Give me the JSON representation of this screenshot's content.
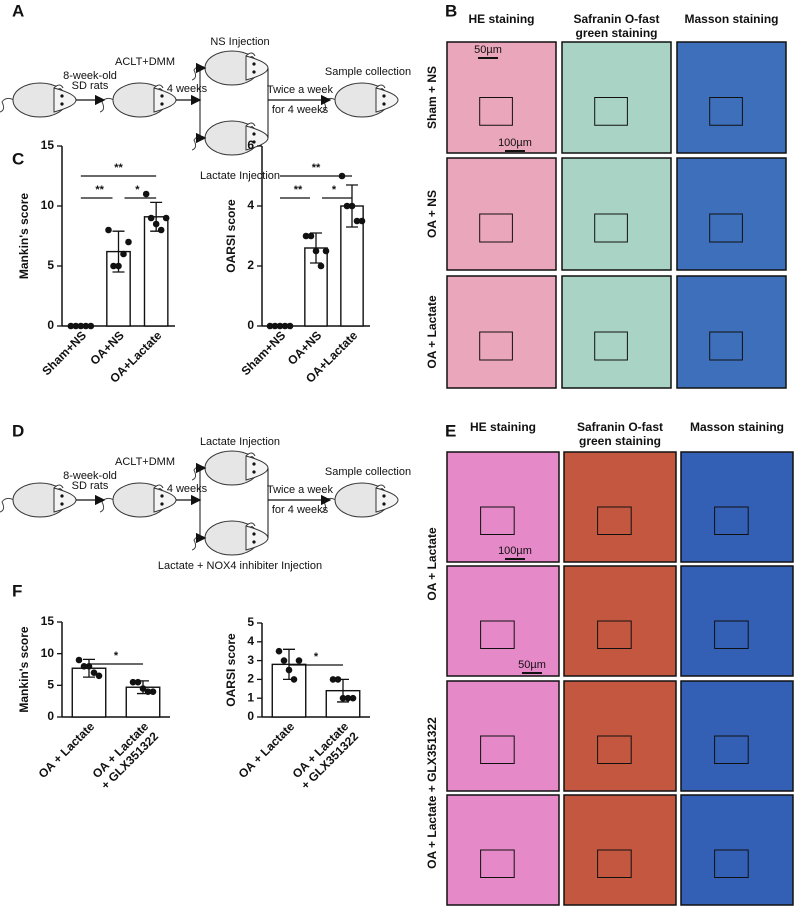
{
  "panel_labels": [
    "A",
    "B",
    "C",
    "D",
    "E",
    "F"
  ],
  "schemes": [
    {
      "age_lines": [
        "8-week-old",
        "SD rats"
      ],
      "surgery": "ACLT+DMM",
      "interval": "4 weeks",
      "upper_treatment": "NS Injection",
      "lower_treatment": "Lactate Injection",
      "schedule_lines": [
        "Twice a week",
        "for 4 weeks"
      ],
      "endpoint": "Sample collection"
    },
    {
      "age_lines": [
        "8-week-old",
        "SD rats"
      ],
      "surgery": "ACLT+DMM",
      "interval": "4 weeks",
      "upper_treatment": "Lactate Injection",
      "lower_treatment": "Lactate + NOX4 inhibiter Injection",
      "schedule_lines": [
        "Twice a week",
        "for 4 weeks"
      ],
      "endpoint": "Sample collection"
    }
  ],
  "histology": [
    {
      "columns": [
        [
          "HE staining"
        ],
        [
          "Safranin O-fast",
          "green staining"
        ],
        [
          "Masson staining"
        ]
      ],
      "rows": [
        "Sham + NS",
        "OA + NS",
        "OA + Lactate"
      ],
      "scale_bars": [
        "50µm",
        "100µm"
      ]
    },
    {
      "columns": [
        [
          "HE staining"
        ],
        [
          "Safranin O-fast",
          "green staining"
        ],
        [
          "Masson staining"
        ]
      ],
      "rows": [
        "OA + Lactate",
        "OA + Lactate + GLX351322"
      ],
      "scale_bars": [
        "100µm",
        "50µm"
      ]
    }
  ],
  "chart_data": [
    {
      "type": "bar",
      "y_label": "Mankin's score",
      "categories": [
        [
          "Sham+NS"
        ],
        [
          "OA+NS"
        ],
        [
          "OA+Lactate"
        ]
      ],
      "values": [
        0,
        6.2,
        9.1
      ],
      "errors": [
        0,
        1.7,
        1.2
      ],
      "points": [
        [
          0,
          0,
          0,
          0,
          0
        ],
        [
          8,
          5,
          5,
          6,
          7
        ],
        [
          11,
          9,
          8.5,
          8,
          9
        ]
      ],
      "ylim": [
        0,
        15
      ],
      "yticks": [
        0,
        5,
        10,
        15
      ],
      "comparisons": [
        {
          "pair": [
            0,
            2
          ],
          "label": "**"
        },
        {
          "pair": [
            0,
            1
          ],
          "label": "**"
        },
        {
          "pair": [
            1,
            2
          ],
          "label": "*"
        }
      ]
    },
    {
      "type": "bar",
      "y_label": "OARSI score",
      "categories": [
        [
          "Sham+NS"
        ],
        [
          "OA+NS"
        ],
        [
          "OA+Lactate"
        ]
      ],
      "values": [
        0,
        2.6,
        4.0
      ],
      "errors": [
        0,
        0.5,
        0.7
      ],
      "points": [
        [
          0,
          0,
          0,
          0,
          0
        ],
        [
          3,
          3,
          2.5,
          2,
          2.5
        ],
        [
          5,
          4,
          4,
          3.5,
          3.5
        ]
      ],
      "ylim": [
        0,
        6
      ],
      "yticks": [
        0,
        2,
        4,
        6
      ],
      "comparisons": [
        {
          "pair": [
            0,
            2
          ],
          "label": "**"
        },
        {
          "pair": [
            0,
            1
          ],
          "label": "**"
        },
        {
          "pair": [
            1,
            2
          ],
          "label": "*"
        }
      ]
    },
    {
      "type": "bar",
      "y_label": "Mankin's score",
      "categories": [
        [
          "OA + Lactate"
        ],
        [
          "OA + Lactate",
          "+ GLX351322"
        ]
      ],
      "values": [
        7.7,
        4.7
      ],
      "errors": [
        1.4,
        1.0
      ],
      "points": [
        [
          9,
          8,
          8,
          7,
          6.5
        ],
        [
          5.5,
          5.5,
          4.5,
          4,
          4
        ]
      ],
      "ylim": [
        0,
        15
      ],
      "yticks": [
        0,
        5,
        10,
        15
      ],
      "comparisons": [
        {
          "pair": [
            0,
            1
          ],
          "label": "*"
        }
      ]
    },
    {
      "type": "bar",
      "y_label": "OARSI score",
      "categories": [
        [
          "OA + Lactate"
        ],
        [
          "OA + Lactate",
          "+ GLX351322"
        ]
      ],
      "values": [
        2.8,
        1.4
      ],
      "errors": [
        0.8,
        0.6
      ],
      "points": [
        [
          3.5,
          3,
          2.5,
          2,
          3
        ],
        [
          2,
          2,
          1,
          1,
          1
        ]
      ],
      "ylim": [
        0,
        5
      ],
      "yticks": [
        0,
        1,
        2,
        3,
        4,
        5
      ],
      "comparisons": [
        {
          "pair": [
            0,
            1
          ],
          "label": "*"
        }
      ]
    }
  ]
}
